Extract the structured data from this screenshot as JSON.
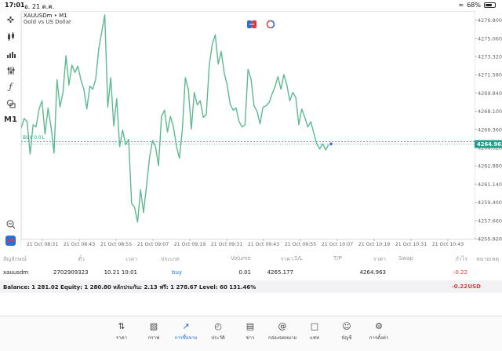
{
  "status": {
    "time": "17:01",
    "date": "อ. 21 ต.ค.",
    "battery": "68%"
  },
  "chart": {
    "symbol": "XAUUSDm • M1",
    "description": "Gold vs US Dollar",
    "trade_line_label": "BUY 0.01",
    "current_price": "4264.963",
    "price_labels": [
      "4276.800",
      "4275.060",
      "4273.320",
      "4271.580",
      "4269.840",
      "4268.100",
      "4266.360",
      "4264.620",
      "4262.880",
      "4261.140",
      "4259.400",
      "4257.660",
      "4255.920"
    ],
    "time_labels": [
      "21 Oct 08:31",
      "21 Oct 08:43",
      "21 Oct 08:55",
      "21 Oct 09:07",
      "21 Oct 09:19",
      "21 Oct 09:31",
      "21 Oct 09:43",
      "21 Oct 09:55",
      "21 Oct 10:07",
      "21 Oct 10:19",
      "21 Oct 10:31",
      "21 Oct 10:43"
    ],
    "line_color": "#5cba8e",
    "trade_line_color": "#1f9e8a"
  },
  "chart_data": {
    "type": "line",
    "title": "",
    "x_range": [
      "08:31",
      "10:43"
    ],
    "ylim": [
      4255.92,
      4277.67
    ],
    "buy_price": 4265.177,
    "current_price": 4264.963,
    "series": [
      {
        "values": [
          4266.5,
          4267.4,
          4267.1,
          4264.0,
          4266.8,
          4266.6,
          4268.3,
          4269.1,
          4265.9,
          4268.4,
          4266.6,
          4264.1,
          4271.1,
          4268.5,
          4269.9,
          4273.4,
          4270.6,
          4272.5,
          4271.8,
          4272.4,
          4271.1,
          4270.2,
          4268.3,
          4270.5,
          4270.2,
          4271.2,
          4274.1,
          4275.7,
          4277.3,
          4268.5,
          4271.3,
          4266.7,
          4269.3,
          4264.7,
          4266.3,
          4264.9,
          4265.4,
          4259.3,
          4258.9,
          4257.5,
          4260.6,
          4258.4,
          4261.0,
          4263.7,
          4265.3,
          4264.7,
          4262.9,
          4267.6,
          4268.2,
          4266.1,
          4267.6,
          4266.6,
          4264.8,
          4263.6,
          4266.4,
          4271.3,
          4270.2,
          4266.4,
          4269.9,
          4268.7,
          4269.1,
          4267.5,
          4267.8,
          4272.5,
          4274.5,
          4275.4,
          4272.6,
          4273.8,
          4271.8,
          4270.6,
          4268.8,
          4268.2,
          4268.4,
          4267.1,
          4266.6,
          4266.8,
          4272.1,
          4271.2,
          4268.6,
          4268.1,
          4266.9,
          4268.5,
          4268.6,
          4268.9,
          4269.7,
          4270.4,
          4271.4,
          4270.2,
          4271.6,
          4270.6,
          4269.1,
          4269.9,
          4269.4,
          4266.8,
          4268.3,
          4267.5,
          4266.6,
          4267.1,
          4266.0,
          4265.0,
          4264.5,
          4265.0,
          4264.4,
          4264.9
        ]
      }
    ]
  },
  "table": {
    "headers": [
      "สัญลักษณ์",
      "ตั๋ว",
      "เวลา",
      "ประเภท",
      "Volume",
      "ราคา",
      "S/L",
      "T/P",
      "ราคา",
      "Swap",
      "กำไร",
      "หมายเหตุ"
    ],
    "row": {
      "symbol": "xauusdm",
      "ticket": "2702909323",
      "time": "10.21 10:01",
      "type": "buy",
      "volume": "0.01",
      "open_price": "4265.177",
      "price": "4264.963",
      "profit": "-0.22"
    }
  },
  "balance": {
    "text": "Balance: 1 281.02 Equity: 1 280.80 หลักประกัน: 2.13 ฟรี: 1 278.67 Level: 60 131.46%",
    "profit": "-0.22",
    "currency": "USD"
  },
  "tabs": [
    {
      "label": "ราคา",
      "icon": "quotes-icon"
    },
    {
      "label": "กราฟ",
      "icon": "chart-icon"
    },
    {
      "label": "การซื้อขาย",
      "icon": "trade-icon"
    },
    {
      "label": "ประวัติ",
      "icon": "history-icon"
    },
    {
      "label": "ข่าว",
      "icon": "news-icon"
    },
    {
      "label": "กล่องจดหมาย",
      "icon": "mailbox-icon"
    },
    {
      "label": "แชท",
      "icon": "chat-icon"
    },
    {
      "label": "บัญชี",
      "icon": "account-icon"
    },
    {
      "label": "การตั้งค่า",
      "icon": "settings-icon"
    }
  ],
  "active_tab": 2
}
